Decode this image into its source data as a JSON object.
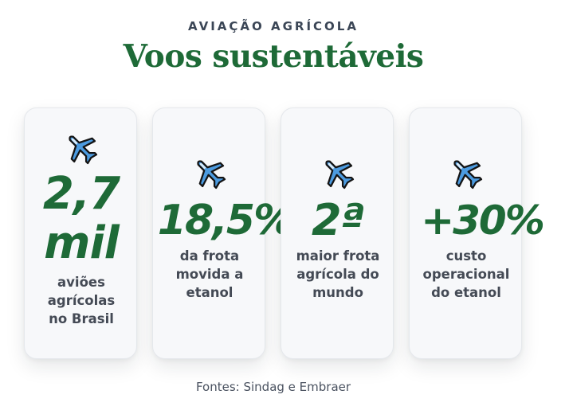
{
  "header": {
    "kicker": "AVIAÇÃO AGRÍCOLA",
    "title": "Voos sustentáveis"
  },
  "cards": [
    {
      "icon": "airplane-icon",
      "stat": "2,7 mil",
      "stat_lines": [
        "2,7",
        "mil"
      ],
      "label_lines": [
        "aviões",
        "agrícolas",
        "no Brasil"
      ]
    },
    {
      "icon": "airplane-icon",
      "stat": "18,5%",
      "label_lines": [
        "da frota",
        "movida a",
        "etanol"
      ]
    },
    {
      "icon": "airplane-icon",
      "stat": "2ª",
      "label_lines": [
        "maior frota",
        "agrícola do",
        "mundo"
      ]
    },
    {
      "icon": "airplane-icon",
      "stat": "+30%",
      "label_lines": [
        "custo",
        "operacional",
        "do etanol"
      ]
    }
  ],
  "footer": {
    "source": "Fontes: Sindag e Embraer"
  },
  "colors": {
    "accent_green": "#1e6a37",
    "label_gray": "#444a55",
    "kicker_gray": "#3b4656",
    "card_background": "#f7f8fa",
    "plane_blue": "#4c9be0"
  }
}
